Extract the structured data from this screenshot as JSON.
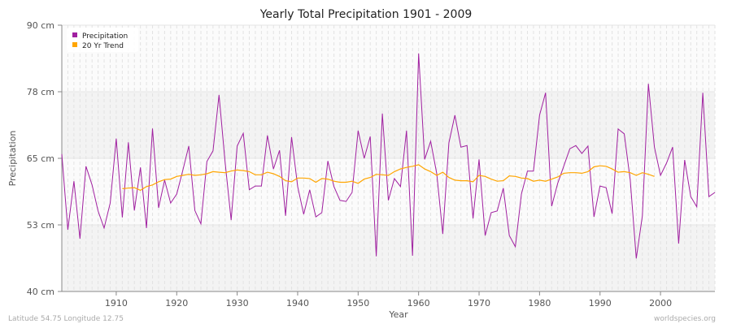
{
  "chart_data": {
    "type": "line",
    "title": "Yearly Total Precipitation 1901 - 2009",
    "xlabel": "Year",
    "ylabel": "Precipitation",
    "xlim": [
      1901,
      2009
    ],
    "ylim": [
      40,
      90
    ],
    "x_ticks": [
      1910,
      1920,
      1930,
      1940,
      1950,
      1960,
      1970,
      1980,
      1990,
      2000
    ],
    "y_ticks": [
      {
        "value": 90,
        "label": "90 cm"
      },
      {
        "value": 77.5,
        "label": "78 cm"
      },
      {
        "value": 65,
        "label": "65 cm"
      },
      {
        "value": 52.5,
        "label": "53 cm"
      },
      {
        "value": 40,
        "label": "40 cm"
      }
    ],
    "grid": true,
    "legend_position": "top-left",
    "series": [
      {
        "name": "Precipitation",
        "color": "#a020a0",
        "x_start": 1901,
        "values": [
          65.8,
          51.6,
          60.7,
          49.9,
          63.5,
          60.0,
          55.1,
          51.9,
          56.6,
          68.7,
          53.9,
          68.0,
          55.2,
          63.3,
          51.9,
          70.6,
          55.7,
          60.9,
          56.6,
          58.3,
          62.7,
          67.3,
          55.2,
          52.7,
          64.4,
          66.4,
          76.9,
          64.2,
          53.4,
          67.3,
          69.7,
          59.1,
          59.8,
          59.8,
          69.3,
          63.0,
          66.5,
          54.2,
          69.0,
          59.7,
          54.5,
          59.1,
          54.0,
          54.8,
          64.5,
          59.7,
          57.1,
          56.9,
          58.6,
          70.2,
          65.0,
          69.1,
          46.6,
          73.4,
          57.1,
          61.2,
          59.7,
          70.2,
          46.7,
          84.7,
          64.8,
          68.2,
          62.1,
          50.8,
          67.9,
          73.1,
          67.1,
          67.4,
          53.7,
          64.8,
          50.5,
          54.8,
          55.1,
          59.4,
          50.5,
          48.4,
          58.3,
          62.6,
          62.6,
          73.1,
          77.3,
          56.0,
          60.3,
          63.5,
          66.8,
          67.4,
          65.9,
          67.3,
          54.0,
          59.8,
          59.5,
          54.6,
          70.5,
          69.6,
          60.9,
          46.2,
          54.2,
          79.0,
          67.1,
          61.8,
          64.1,
          67.1,
          49.0,
          64.7,
          57.8,
          55.9,
          77.3,
          57.8,
          58.6
        ]
      },
      {
        "name": "20 Yr Trend",
        "color": "#ffa500",
        "x_start": 1911,
        "values": [
          59.3,
          59.4,
          59.5,
          59.0,
          59.7,
          60.0,
          60.6,
          61.0,
          61.1,
          61.6,
          61.8,
          62.0,
          61.8,
          61.9,
          62.1,
          62.5,
          62.4,
          62.3,
          62.6,
          62.8,
          62.7,
          62.5,
          61.9,
          61.9,
          62.4,
          62.1,
          61.6,
          60.8,
          60.6,
          61.3,
          61.3,
          61.2,
          60.5,
          61.2,
          61.1,
          60.7,
          60.5,
          60.5,
          60.7,
          60.3,
          61.1,
          61.4,
          62.0,
          61.9,
          61.8,
          62.5,
          63.0,
          63.3,
          63.5,
          63.8,
          63.0,
          62.5,
          61.8,
          62.4,
          61.4,
          60.9,
          60.8,
          60.8,
          60.6,
          61.8,
          61.6,
          61.1,
          60.7,
          60.8,
          61.7,
          61.6,
          61.3,
          61.2,
          60.7,
          60.9,
          60.7,
          61.1,
          61.5,
          62.2,
          62.3,
          62.3,
          62.2,
          62.5,
          63.4,
          63.6,
          63.5,
          63.0,
          62.4,
          62.5,
          62.3,
          61.8,
          62.3,
          62.0,
          61.6
        ]
      }
    ]
  },
  "footer": {
    "location": "Latitude 54.75 Longitude 12.75",
    "source": "worldspecies.org"
  }
}
